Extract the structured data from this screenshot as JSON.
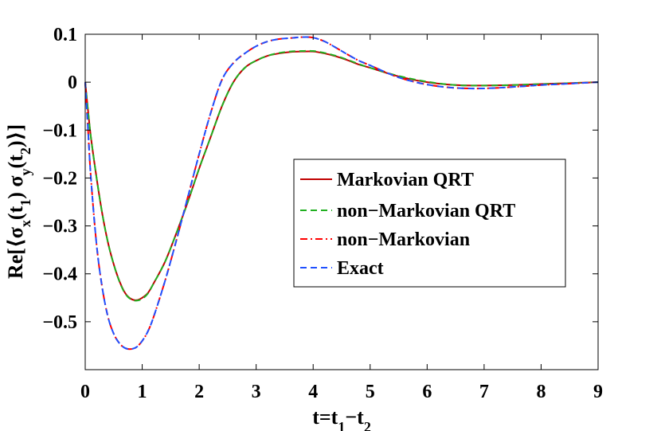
{
  "chart_data": {
    "type": "line",
    "title": "",
    "xlabel": "t=t1−t2",
    "ylabel": "Re[⟨σx(t1) σy(t2)⟩]",
    "xlim": [
      0,
      9
    ],
    "ylim": [
      -0.6,
      0.1
    ],
    "xticks": [
      0,
      1,
      2,
      3,
      4,
      5,
      6,
      7,
      8,
      9
    ],
    "xtick_labels": [
      "0",
      "1",
      "2",
      "3",
      "4",
      "5",
      "6",
      "7",
      "8",
      "9"
    ],
    "yticks": [
      0.1,
      0,
      -0.1,
      -0.2,
      -0.3,
      -0.4,
      -0.5
    ],
    "ytick_labels": [
      "0.1",
      "0",
      "−0.1",
      "−0.2",
      "−0.3",
      "−0.4",
      "−0.5"
    ],
    "legend_position": "center-right",
    "series": [
      {
        "name": "Markovian QRT",
        "color": "#c00000",
        "dash": "solid",
        "x": [
          0,
          0.05,
          0.1,
          0.2,
          0.3,
          0.4,
          0.5,
          0.6,
          0.7,
          0.8,
          0.9,
          1.0,
          1.1,
          1.2,
          1.4,
          1.6,
          1.8,
          2.0,
          2.2,
          2.4,
          2.6,
          2.8,
          3.0,
          3.2,
          3.4,
          3.6,
          3.8,
          4.0,
          4.2,
          4.4,
          4.6,
          4.8,
          5.0,
          5.5,
          6.0,
          6.5,
          7.0,
          7.5,
          8.0,
          8.5,
          9.0
        ],
        "y": [
          0,
          -0.06,
          -0.115,
          -0.2,
          -0.275,
          -0.335,
          -0.38,
          -0.415,
          -0.44,
          -0.452,
          -0.455,
          -0.45,
          -0.44,
          -0.42,
          -0.375,
          -0.315,
          -0.25,
          -0.18,
          -0.115,
          -0.05,
          0.0,
          0.03,
          0.045,
          0.055,
          0.06,
          0.063,
          0.064,
          0.064,
          0.06,
          0.054,
          0.046,
          0.037,
          0.03,
          0.012,
          0.0,
          -0.006,
          -0.007,
          -0.006,
          -0.004,
          -0.002,
          0.0
        ]
      },
      {
        "name": "non−Markovian QRT",
        "color": "#20b020",
        "dash": "dashed",
        "x": [
          0,
          0.05,
          0.1,
          0.2,
          0.3,
          0.4,
          0.5,
          0.6,
          0.7,
          0.8,
          0.9,
          1.0,
          1.1,
          1.2,
          1.4,
          1.6,
          1.8,
          2.0,
          2.2,
          2.4,
          2.6,
          2.8,
          3.0,
          3.2,
          3.4,
          3.6,
          3.8,
          4.0,
          4.2,
          4.4,
          4.6,
          4.8,
          5.0,
          5.5,
          6.0,
          6.5,
          7.0,
          7.5,
          8.0,
          8.5,
          9.0
        ],
        "y": [
          0,
          -0.06,
          -0.115,
          -0.2,
          -0.275,
          -0.335,
          -0.38,
          -0.416,
          -0.441,
          -0.453,
          -0.456,
          -0.452,
          -0.441,
          -0.42,
          -0.375,
          -0.315,
          -0.25,
          -0.18,
          -0.115,
          -0.05,
          0.0,
          0.03,
          0.045,
          0.055,
          0.061,
          0.064,
          0.065,
          0.065,
          0.061,
          0.055,
          0.047,
          0.038,
          0.03,
          0.013,
          0.001,
          -0.006,
          -0.007,
          -0.006,
          -0.004,
          -0.002,
          0.0
        ]
      },
      {
        "name": "non−Markovian",
        "color": "#ff0000",
        "dash": "dashdot",
        "x": [
          0,
          0.05,
          0.1,
          0.2,
          0.3,
          0.4,
          0.5,
          0.6,
          0.7,
          0.8,
          0.9,
          1.0,
          1.1,
          1.2,
          1.4,
          1.6,
          1.8,
          2.0,
          2.2,
          2.4,
          2.6,
          2.8,
          3.0,
          3.2,
          3.4,
          3.6,
          3.8,
          4.0,
          4.2,
          4.4,
          4.6,
          4.8,
          5.0,
          5.5,
          6.0,
          6.5,
          7.0,
          7.5,
          8.0,
          8.5,
          9.0
        ],
        "y": [
          0,
          -0.1,
          -0.2,
          -0.34,
          -0.43,
          -0.49,
          -0.525,
          -0.545,
          -0.555,
          -0.557,
          -0.553,
          -0.54,
          -0.52,
          -0.49,
          -0.415,
          -0.33,
          -0.24,
          -0.15,
          -0.065,
          0.005,
          0.04,
          0.06,
          0.075,
          0.085,
          0.09,
          0.092,
          0.094,
          0.093,
          0.085,
          0.072,
          0.058,
          0.045,
          0.035,
          0.01,
          -0.005,
          -0.012,
          -0.013,
          -0.01,
          -0.006,
          -0.003,
          0.0
        ]
      },
      {
        "name": "Exact",
        "color": "#2050ff",
        "dash": "dashed",
        "x": [
          0,
          0.05,
          0.1,
          0.2,
          0.3,
          0.4,
          0.5,
          0.6,
          0.7,
          0.8,
          0.9,
          1.0,
          1.1,
          1.2,
          1.4,
          1.6,
          1.8,
          2.0,
          2.2,
          2.4,
          2.6,
          2.8,
          3.0,
          3.2,
          3.4,
          3.6,
          3.8,
          4.0,
          4.2,
          4.4,
          4.6,
          4.8,
          5.0,
          5.5,
          6.0,
          6.5,
          7.0,
          7.5,
          8.0,
          8.5,
          9.0
        ],
        "y": [
          0,
          -0.1,
          -0.2,
          -0.34,
          -0.43,
          -0.49,
          -0.525,
          -0.545,
          -0.555,
          -0.557,
          -0.553,
          -0.54,
          -0.52,
          -0.49,
          -0.415,
          -0.33,
          -0.24,
          -0.15,
          -0.065,
          0.005,
          0.04,
          0.06,
          0.075,
          0.085,
          0.09,
          0.092,
          0.094,
          0.093,
          0.085,
          0.072,
          0.058,
          0.045,
          0.035,
          0.01,
          -0.005,
          -0.012,
          -0.013,
          -0.01,
          -0.006,
          -0.003,
          0.0
        ]
      }
    ]
  }
}
